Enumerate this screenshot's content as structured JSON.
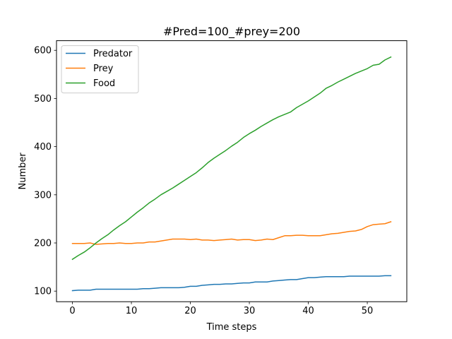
{
  "chart_data": {
    "type": "line",
    "title": "#Pred=100_#prey=200",
    "xlabel": "Time steps",
    "ylabel": "Number",
    "xlim": [
      -2.7,
      56.7
    ],
    "ylim": [
      78,
      620
    ],
    "xticks": [
      0,
      10,
      20,
      30,
      40,
      50
    ],
    "yticks": [
      100,
      200,
      300,
      400,
      500,
      600
    ],
    "legend_position": "upper-left",
    "grid": false,
    "x": [
      0,
      1,
      2,
      3,
      4,
      5,
      6,
      7,
      8,
      9,
      10,
      11,
      12,
      13,
      14,
      15,
      16,
      17,
      18,
      19,
      20,
      21,
      22,
      23,
      24,
      25,
      26,
      27,
      28,
      29,
      30,
      31,
      32,
      33,
      34,
      35,
      36,
      37,
      38,
      39,
      40,
      41,
      42,
      43,
      44,
      45,
      46,
      47,
      48,
      49,
      50,
      51,
      52,
      53,
      54
    ],
    "series": [
      {
        "name": "Predator",
        "color": "#1f77b4",
        "values": [
          101,
          102,
          102,
          102,
          104,
          104,
          104,
          104,
          104,
          104,
          104,
          104,
          105,
          105,
          106,
          107,
          107,
          107,
          107,
          108,
          110,
          110,
          112,
          113,
          114,
          114,
          115,
          115,
          116,
          117,
          117,
          119,
          119,
          119,
          121,
          122,
          123,
          124,
          124,
          126,
          128,
          128,
          129,
          130,
          130,
          130,
          130,
          131,
          131,
          131,
          131,
          131,
          131,
          132,
          132
        ]
      },
      {
        "name": "Prey",
        "color": "#ff7f0e",
        "values": [
          199,
          199,
          199,
          200,
          197,
          198,
          199,
          199,
          200,
          199,
          199,
          200,
          200,
          202,
          202,
          204,
          206,
          208,
          208,
          208,
          207,
          208,
          206,
          206,
          205,
          206,
          207,
          208,
          206,
          207,
          207,
          205,
          206,
          208,
          207,
          211,
          215,
          215,
          216,
          216,
          215,
          215,
          215,
          217,
          219,
          220,
          222,
          224,
          225,
          228,
          234,
          238,
          239,
          240,
          244
        ]
      },
      {
        "name": "Food",
        "color": "#2ca02c",
        "values": [
          166,
          174,
          181,
          190,
          200,
          209,
          217,
          227,
          236,
          244,
          254,
          264,
          273,
          283,
          291,
          300,
          307,
          314,
          322,
          330,
          338,
          346,
          356,
          367,
          376,
          384,
          392,
          401,
          409,
          419,
          427,
          434,
          442,
          449,
          456,
          462,
          467,
          472,
          481,
          488,
          495,
          503,
          511,
          521,
          527,
          534,
          540,
          546,
          552,
          557,
          562,
          569,
          571,
          580,
          586
        ]
      }
    ]
  }
}
